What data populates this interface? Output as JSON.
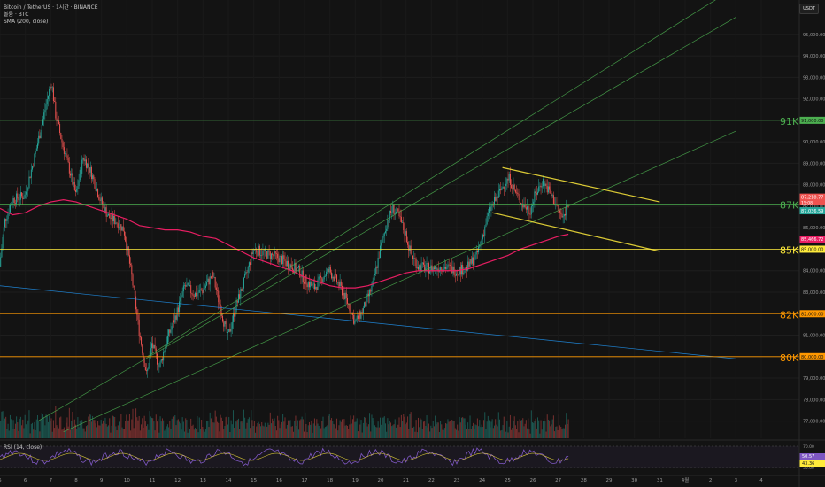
{
  "header": {
    "title": "Bitcoin / TetherUS · 1시간 · BINANCE",
    "subtitle": "볼륨 · BTC",
    "indicator": "SMA (200, close)"
  },
  "unit_button": "USDT",
  "rsi": {
    "label": "RSI (14, close)",
    "values": [
      "50.57",
      "43.36"
    ],
    "level_labels": [
      "70.00",
      "30.00"
    ]
  },
  "colors": {
    "background": "#131313",
    "up": "#26a69a",
    "down": "#ef5350",
    "sma": "#e91e63",
    "level_green": "#4caf50",
    "level_yellow": "#ffeb3b",
    "level_orange": "#ff9800",
    "channel": "#4caf50",
    "trend_blue": "#2196f3",
    "rsi_line": "#7e57c2",
    "rsi_ma": "#ffeb3b"
  },
  "chart_data": {
    "type": "candlestick",
    "title": "Bitcoin / TetherUS · 1시간 · BINANCE",
    "ylim": [
      76200,
      96600
    ],
    "y_ticks": [
      "77,000.00",
      "78,000.00",
      "79,000.00",
      "80,000.00",
      "81,000.00",
      "82,000.00",
      "83,000.00",
      "84,000.00",
      "85,000.00",
      "86,000.00",
      "87,000.00",
      "88,000.00",
      "89,000.00",
      "90,000.00",
      "91,000.00",
      "92,000.00",
      "93,000.00",
      "94,000.00",
      "95,000.00"
    ],
    "x_ticks": [
      "5",
      "6",
      "7",
      "8",
      "9",
      "10",
      "11",
      "12",
      "13",
      "14",
      "15",
      "16",
      "17",
      "18",
      "19",
      "20",
      "21",
      "22",
      "23",
      "24",
      "25",
      "26",
      "27",
      "28",
      "29",
      "30",
      "31",
      "4월",
      "2",
      "3",
      "4"
    ],
    "price_path": [
      [
        5,
        84200
      ],
      [
        5.2,
        86300
      ],
      [
        5.5,
        87300
      ],
      [
        6,
        87500
      ],
      [
        6.4,
        89400
      ],
      [
        6.7,
        91000
      ],
      [
        6.9,
        92100
      ],
      [
        7.05,
        92800
      ],
      [
        7.2,
        91300
      ],
      [
        7.5,
        89800
      ],
      [
        7.8,
        88500
      ],
      [
        8,
        87500
      ],
      [
        8.3,
        89300
      ],
      [
        8.6,
        88600
      ],
      [
        9,
        87200
      ],
      [
        9.3,
        86500
      ],
      [
        9.6,
        86300
      ],
      [
        9.9,
        85900
      ],
      [
        10.2,
        83800
      ],
      [
        10.5,
        81200
      ],
      [
        10.8,
        79100
      ],
      [
        11.0,
        80600
      ],
      [
        11.3,
        79500
      ],
      [
        11.6,
        80800
      ],
      [
        12,
        82100
      ],
      [
        12.3,
        83300
      ],
      [
        12.7,
        82900
      ],
      [
        13,
        83100
      ],
      [
        13.4,
        83800
      ],
      [
        13.8,
        81800
      ],
      [
        14,
        80900
      ],
      [
        14.3,
        82300
      ],
      [
        14.7,
        83700
      ],
      [
        15,
        85000
      ],
      [
        15.5,
        84800
      ],
      [
        16,
        84600
      ],
      [
        16.4,
        84300
      ],
      [
        16.8,
        84000
      ],
      [
        17,
        83600
      ],
      [
        17.4,
        83200
      ],
      [
        17.8,
        83800
      ],
      [
        18,
        84000
      ],
      [
        18.4,
        83300
      ],
      [
        18.8,
        82300
      ],
      [
        19,
        81600
      ],
      [
        19.3,
        82100
      ],
      [
        19.7,
        83300
      ],
      [
        20,
        85000
      ],
      [
        20.3,
        86400
      ],
      [
        20.5,
        86900
      ],
      [
        20.7,
        86600
      ],
      [
        21,
        85700
      ],
      [
        21.2,
        84800
      ],
      [
        21.5,
        84200
      ],
      [
        22,
        84100
      ],
      [
        22.5,
        84200
      ],
      [
        23,
        84000
      ],
      [
        23.4,
        84100
      ],
      [
        23.8,
        84700
      ],
      [
        24,
        85500
      ],
      [
        24.3,
        86800
      ],
      [
        24.6,
        87400
      ],
      [
        24.9,
        88100
      ],
      [
        25.1,
        88300
      ],
      [
        25.3,
        87700
      ],
      [
        25.6,
        87100
      ],
      [
        25.9,
        86800
      ],
      [
        26.1,
        87500
      ],
      [
        26.4,
        88200
      ],
      [
        26.7,
        87600
      ],
      [
        27,
        86900
      ],
      [
        27.2,
        86400
      ],
      [
        27.4,
        87200
      ]
    ],
    "sma_200": [
      [
        5,
        86900
      ],
      [
        5.5,
        86600
      ],
      [
        6,
        86700
      ],
      [
        6.5,
        87000
      ],
      [
        7,
        87200
      ],
      [
        7.5,
        87300
      ],
      [
        8,
        87200
      ],
      [
        8.5,
        87000
      ],
      [
        9,
        86800
      ],
      [
        9.5,
        86600
      ],
      [
        10,
        86400
      ],
      [
        10.5,
        86100
      ],
      [
        11,
        86000
      ],
      [
        11.5,
        85900
      ],
      [
        12,
        85900
      ],
      [
        12.5,
        85800
      ],
      [
        13,
        85600
      ],
      [
        13.5,
        85500
      ],
      [
        14,
        85200
      ],
      [
        14.5,
        84900
      ],
      [
        15,
        84600
      ],
      [
        15.5,
        84400
      ],
      [
        16,
        84200
      ],
      [
        16.5,
        84000
      ],
      [
        17,
        83700
      ],
      [
        17.5,
        83500
      ],
      [
        18,
        83300
      ],
      [
        18.5,
        83200
      ],
      [
        19,
        83200
      ],
      [
        19.5,
        83300
      ],
      [
        20,
        83500
      ],
      [
        20.5,
        83700
      ],
      [
        21,
        83900
      ],
      [
        21.5,
        84000
      ],
      [
        22,
        84000
      ],
      [
        22.5,
        84000
      ],
      [
        23,
        84000
      ],
      [
        23.5,
        84100
      ],
      [
        24,
        84300
      ],
      [
        24.5,
        84500
      ],
      [
        25,
        84700
      ],
      [
        25.5,
        85000
      ],
      [
        26,
        85200
      ],
      [
        26.5,
        85400
      ],
      [
        27,
        85600
      ],
      [
        27.4,
        85700
      ]
    ],
    "levels": [
      {
        "label": "91K",
        "value": 91000,
        "price_label": "91,000.00",
        "color": "#4caf50"
      },
      {
        "label": "87K",
        "value": 87100,
        "price_label": "",
        "color": "#4caf50"
      },
      {
        "label": "85K",
        "value": 85000,
        "price_label": "85,000.00",
        "color": "#ffeb3b"
      },
      {
        "label": "82K",
        "value": 82000,
        "price_label": "82,000.00",
        "color": "#ff9800"
      },
      {
        "label": "80K",
        "value": 80000,
        "price_label": "80,000.00",
        "color": "#ff9800"
      }
    ],
    "price_badges": [
      {
        "value": 87218.77,
        "label": "87,218.77",
        "sub": "15:08",
        "color": "#ef5350"
      },
      {
        "value": 87036.59,
        "label": "87,036.59",
        "sub": "",
        "color": "#26a69a"
      },
      {
        "value": 85466.72,
        "label": "85,466.72",
        "sub": "",
        "color": "#e91e63"
      }
    ],
    "trendlines": [
      {
        "points": [
          [
            5,
            83300
          ],
          [
            34,
            79900
          ]
        ],
        "color": "#2196f3"
      },
      {
        "points": [
          [
            10.8,
            80000
          ],
          [
            34,
            97200
          ]
        ],
        "color": "#4caf50"
      },
      {
        "points": [
          [
            6.5,
            77000
          ],
          [
            34,
            95800
          ]
        ],
        "color": "#4caf50"
      },
      {
        "points": [
          [
            7.5,
            76500
          ],
          [
            34,
            90500
          ]
        ],
        "color": "#4caf50"
      },
      {
        "points": [
          [
            24.8,
            88800
          ],
          [
            31,
            87200
          ]
        ],
        "color": "#ffeb3b"
      },
      {
        "points": [
          [
            24.4,
            86700
          ],
          [
            31,
            84900
          ]
        ],
        "color": "#ffeb3b"
      }
    ]
  }
}
